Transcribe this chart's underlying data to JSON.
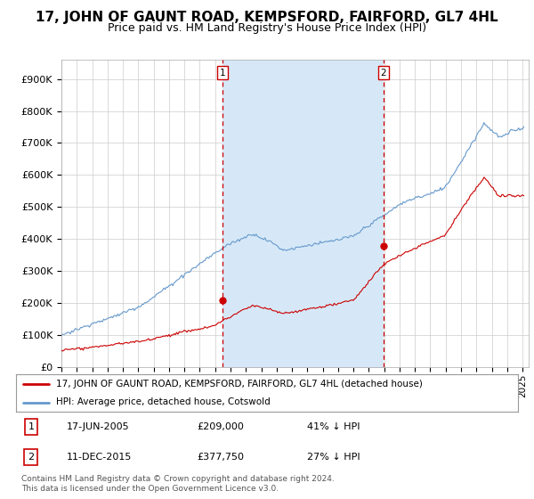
{
  "title": "17, JOHN OF GAUNT ROAD, KEMPSFORD, FAIRFORD, GL7 4HL",
  "subtitle": "Price paid vs. HM Land Registry's House Price Index (HPI)",
  "ylabel_ticks": [
    "£0",
    "£100K",
    "£200K",
    "£300K",
    "£400K",
    "£500K",
    "£600K",
    "£700K",
    "£800K",
    "£900K"
  ],
  "ytick_values": [
    0,
    100000,
    200000,
    300000,
    400000,
    500000,
    600000,
    700000,
    800000,
    900000
  ],
  "ylim": [
    0,
    960000
  ],
  "xlim_start": 1995.0,
  "xlim_end": 2025.4,
  "transaction1_date": 2005.46,
  "transaction1_price": 209000,
  "transaction1_label": "1",
  "transaction1_text": "17-JUN-2005",
  "transaction1_amount": "£209,000",
  "transaction1_hpi": "41% ↓ HPI",
  "transaction2_date": 2015.95,
  "transaction2_price": 377750,
  "transaction2_label": "2",
  "transaction2_text": "11-DEC-2015",
  "transaction2_amount": "£377,750",
  "transaction2_hpi": "27% ↓ HPI",
  "line_red_color": "#cc0000",
  "line_blue_color": "#6699cc",
  "fill_color": "#d6e8f7",
  "vline_color": "#cc0000",
  "legend_line1": "17, JOHN OF GAUNT ROAD, KEMPSFORD, FAIRFORD, GL7 4HL (detached house)",
  "legend_line2": "HPI: Average price, detached house, Cotswold",
  "footer": "Contains HM Land Registry data © Crown copyright and database right 2024.\nThis data is licensed under the Open Government Licence v3.0.",
  "bg_color": "#ffffff",
  "grid_color": "#cccccc",
  "title_fontsize": 11,
  "subtitle_fontsize": 9,
  "tick_fontsize": 8
}
